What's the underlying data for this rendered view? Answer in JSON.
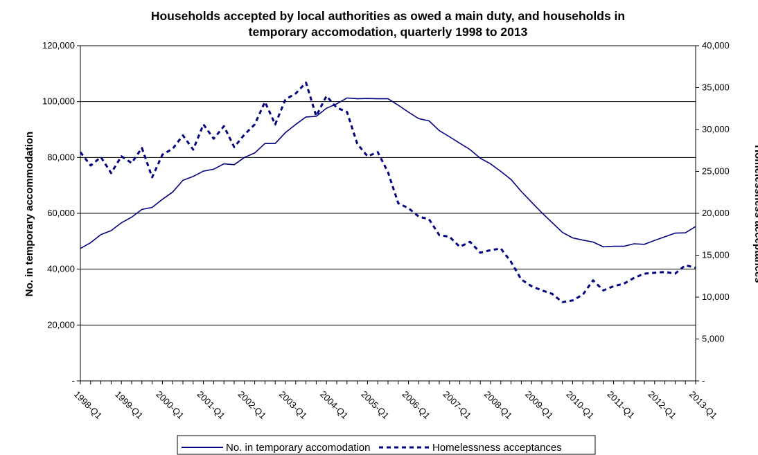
{
  "chart_data": {
    "type": "line",
    "title": "Households accepted by local authorities as owed a main duty, and households in temporary accomodation, quarterly 1998 to 2013",
    "title_lines": [
      "Households accepted by local authorities as owed a main duty, and households in",
      "temporary accomodation, quarterly 1998 to 2013"
    ],
    "ylabel_left": "No. in temporary accommodation",
    "ylabel_right": "Homelessness acceptances",
    "ylim_left": [
      0,
      120000
    ],
    "ylim_right": [
      0,
      40000
    ],
    "yticks_left": [
      "-",
      "20,000",
      "40,000",
      "60,000",
      "80,000",
      "100,000",
      "120,000"
    ],
    "yticks_right": [
      "-",
      "5,000",
      "10,000",
      "15,000",
      "20,000",
      "25,000",
      "30,000",
      "35,000",
      "40,000"
    ],
    "gridlines_left": [
      20000,
      40000,
      60000,
      80000,
      100000,
      120000
    ],
    "x_tick_labels": [
      "1998-Q1",
      "1999-Q1",
      "2000-Q1",
      "2001-Q1",
      "2002-Q1",
      "2003-Q1",
      "2004-Q1",
      "2005-Q1",
      "2006-Q1",
      "2007-Q1",
      "2008-Q1",
      "2009-Q1",
      "2010-Q1",
      "2011-Q1",
      "2012-Q1",
      "2013-Q1"
    ],
    "legend_position": "bottom",
    "series": [
      {
        "name": "No. in temporary accomodation",
        "axis": "left",
        "style": "solid",
        "color": "#000080",
        "values": [
          47400,
          49500,
          52400,
          53800,
          56600,
          58600,
          61400,
          62100,
          65000,
          67600,
          71800,
          73200,
          75100,
          75800,
          77700,
          77400,
          80000,
          81600,
          85000,
          85000,
          88900,
          91800,
          94500,
          94700,
          97600,
          99200,
          101300,
          101000,
          101100,
          101000,
          101000,
          98700,
          96200,
          93900,
          93100,
          89600,
          87400,
          85100,
          82800,
          79700,
          77700,
          75000,
          72100,
          67800,
          64000,
          60200,
          56700,
          53200,
          51200,
          50400,
          49700,
          48000,
          48200,
          48200,
          49100,
          48900,
          50300,
          51600,
          52900,
          53000,
          55300
        ]
      },
      {
        "name": "Homelessness acceptances",
        "axis": "right",
        "style": "dashed",
        "color": "#000080",
        "values": [
          27300,
          25700,
          26700,
          24800,
          26800,
          26000,
          27800,
          24300,
          27000,
          27700,
          29300,
          27600,
          30600,
          28900,
          30400,
          27900,
          29400,
          30600,
          33300,
          30600,
          33600,
          34300,
          35600,
          31600,
          34000,
          32600,
          32100,
          28300,
          26800,
          27300,
          24900,
          21200,
          20600,
          19600,
          19300,
          17400,
          17200,
          16000,
          16600,
          15300,
          15600,
          15800,
          14200,
          12100,
          11300,
          10800,
          10400,
          9400,
          9600,
          10300,
          12000,
          10800,
          11300,
          11600,
          12300,
          12800,
          12900,
          13000,
          12800,
          13800,
          13500
        ]
      }
    ]
  }
}
